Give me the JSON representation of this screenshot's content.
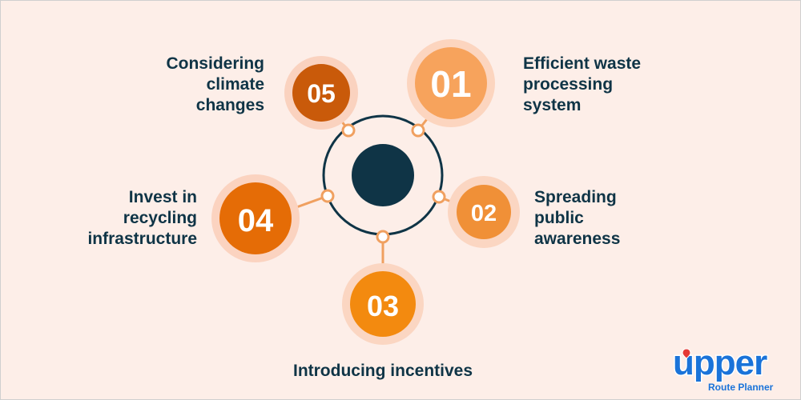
{
  "colors": {
    "background": "#fdeee8",
    "hub_ring": "#0f3446",
    "hub_center": "#0f3446",
    "connector": "#f0a060",
    "text": "#0f3446",
    "logo": "#1a73d9"
  },
  "steps": [
    {
      "number": "01",
      "label": "Efficient waste processing system",
      "color": "#f7a35c",
      "halo": "#fcd5bf"
    },
    {
      "number": "02",
      "label": "Spreading public awareness",
      "color": "#f09037",
      "halo": "#fbd6c2"
    },
    {
      "number": "03",
      "label": "Introducing incentives",
      "color": "#f38a0f",
      "halo": "#fbd6c2"
    },
    {
      "number": "04",
      "label": "Invest in recycling infrastructure",
      "color": "#e56c06",
      "halo": "#fbd3c0"
    },
    {
      "number": "05",
      "label": "Considering climate changes",
      "color": "#c95a0a",
      "halo": "#fad2bf"
    }
  ],
  "label_lines": {
    "s01": [
      "Efficient waste",
      "processing",
      "system"
    ],
    "s02": [
      "Spreading",
      "public",
      "awareness"
    ],
    "s03": [
      "Introducing incentives"
    ],
    "s04": [
      "Invest in",
      "recycling",
      "infrastructure"
    ],
    "s05": [
      "Considering",
      "climate",
      "changes"
    ]
  },
  "logo": {
    "word": "upper",
    "tagline": "Route Planner"
  }
}
